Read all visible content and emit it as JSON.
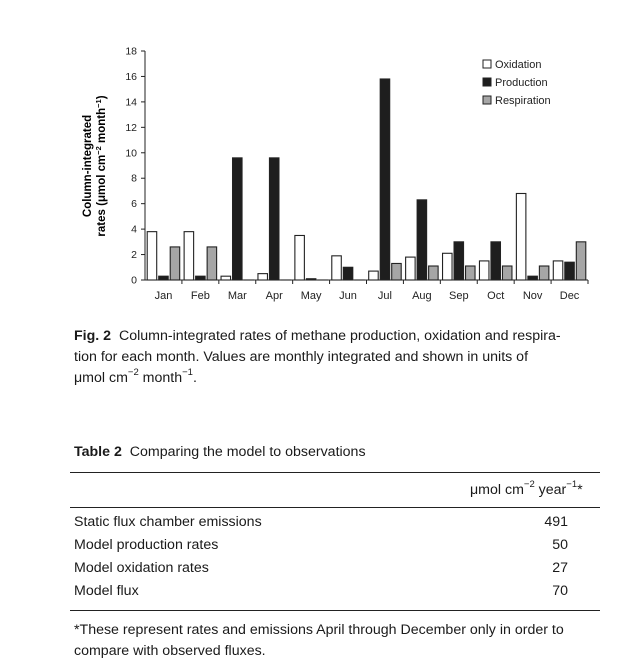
{
  "chart_data": {
    "type": "bar",
    "title": "",
    "xlabel": "",
    "ylabel_line1": "Column-integrated",
    "ylabel_line2_pre": "rates (μmol cm",
    "ylabel_line2_sup1": "−2",
    "ylabel_line2_mid": " month",
    "ylabel_line2_sup2": "−1",
    "ylabel_line2_post": ")",
    "ylim": [
      0,
      18
    ],
    "yticks": [
      "0",
      "2",
      "4",
      "6",
      "8",
      "10",
      "12",
      "14",
      "16",
      "18"
    ],
    "categories": [
      "Jan",
      "Feb",
      "Mar",
      "Apr",
      "May",
      "Jun",
      "Jul",
      "Aug",
      "Sep",
      "Oct",
      "Nov",
      "Dec"
    ],
    "series": [
      {
        "name": "Oxidation",
        "color": "#ffffff",
        "values": [
          3.8,
          3.8,
          0.3,
          0.5,
          3.5,
          1.9,
          0.7,
          1.8,
          2.1,
          1.5,
          6.8,
          1.5
        ]
      },
      {
        "name": "Production",
        "color": "#1e1e1e",
        "values": [
          0.3,
          0.3,
          9.6,
          9.6,
          0.1,
          1.0,
          15.8,
          6.3,
          3.0,
          3.0,
          0.3,
          1.4
        ]
      },
      {
        "name": "Respiration",
        "color": "#a6a6a6",
        "values": [
          2.6,
          2.6,
          0.0,
          0.0,
          0.0,
          0.0,
          1.3,
          1.1,
          1.1,
          1.1,
          1.1,
          3.0
        ]
      }
    ],
    "legend_position": "top-right",
    "grid": false
  },
  "caption": {
    "label": "Fig. 2",
    "line1": "Column-integrated  rates of methane production, oxidation and respira-",
    "line2": "tion for each month. Values are monthly integrated and shown in units of",
    "line3_pre": "μmol cm",
    "line3_sup1": "−2",
    "line3_mid": " month",
    "line3_sup2": "−1",
    "line3_post": "."
  },
  "table": {
    "label": "Table 2",
    "title": "Comparing  the model to observations",
    "unit_pre": "μmol cm",
    "unit_sup1": "−2",
    "unit_mid": " year",
    "unit_sup2": "−1",
    "unit_post": "*",
    "rows": [
      {
        "label": "Static flux chamber emissions",
        "value": "491"
      },
      {
        "label": "Model production rates",
        "value": "50"
      },
      {
        "label": "Model oxidation rates",
        "value": "27"
      },
      {
        "label": "Model flux",
        "value": "70"
      }
    ],
    "footnote_line1": "*These represent rates and emissions April through December only in order to",
    "footnote_line2": "compare with observed fluxes."
  }
}
